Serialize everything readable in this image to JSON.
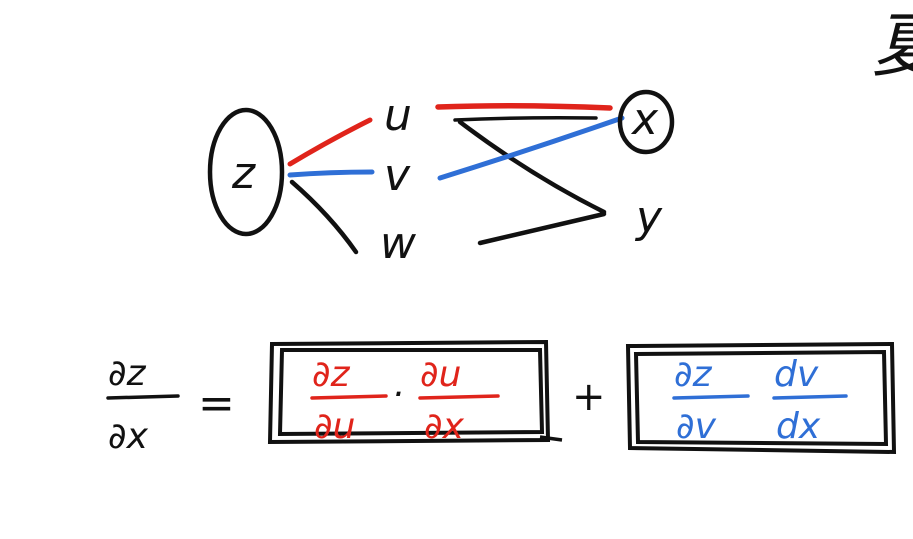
{
  "colors": {
    "ink": "#111111",
    "red": "#e0241b",
    "blue": "#2f6fd6"
  },
  "tree": {
    "root": "z",
    "intermediate": [
      "u",
      "v",
      "w"
    ],
    "variables": [
      "x",
      "y"
    ],
    "highlighted_root_to_intermediate": [
      "u",
      "v"
    ],
    "highlighted_target_variable": "x"
  },
  "equation": {
    "lhs_numerator": "∂z",
    "lhs_denominator": "∂x",
    "equals": "=",
    "plus": "+",
    "term1": {
      "f1_num": "∂z",
      "f1_den": "∂u",
      "dot": "·",
      "f2_num": "∂u",
      "f2_den": "∂x"
    },
    "term2": {
      "f1_num": "∂z",
      "f1_den": "∂v",
      "f2_num": "dv",
      "f2_den": "dx"
    }
  },
  "corner_glyph": "夏"
}
